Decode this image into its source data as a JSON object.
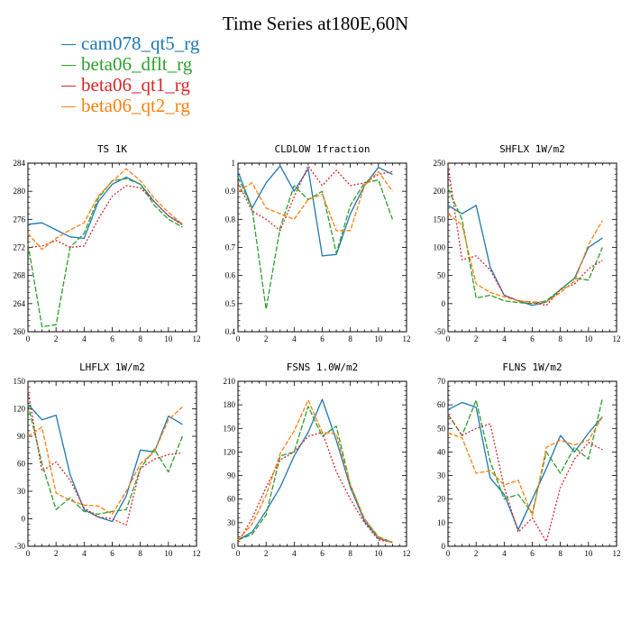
{
  "title": "Time Series at180E,60N",
  "legend": [
    {
      "name": "cam078_qt5_rg",
      "color": "#1f77b4"
    },
    {
      "name": "beta06_dflt_rg",
      "color": "#2ca02c"
    },
    {
      "name": "beta06_qt1_rg",
      "color": "#d62728"
    },
    {
      "name": "beta06_qt2_rg",
      "color": "#ff7f0e"
    }
  ],
  "chart_data": [
    {
      "type": "line",
      "title": "TS   1K",
      "x": [
        0,
        1,
        2,
        3,
        4,
        5,
        6,
        7,
        8,
        9,
        10,
        11
      ],
      "xlim": [
        0,
        12
      ],
      "xticks": [
        0,
        2,
        4,
        6,
        8,
        10,
        12
      ],
      "ylim": [
        260,
        284
      ],
      "yticks": [
        260,
        264,
        268,
        272,
        276,
        280,
        284
      ],
      "series": [
        {
          "name": "cam078_qt5_rg",
          "values": [
            275.3,
            275.5,
            274.5,
            273.5,
            273.3,
            278.5,
            281.0,
            282.0,
            281.0,
            278.5,
            276.5,
            275.3
          ]
        },
        {
          "name": "beta06_dflt_rg",
          "values": [
            272.5,
            260.7,
            261.0,
            272.0,
            274.0,
            279.0,
            281.5,
            281.8,
            281.0,
            278.0,
            276.0,
            274.9
          ]
        },
        {
          "name": "beta06_qt1_rg",
          "values": [
            272.0,
            272.2,
            273.0,
            272.0,
            272.2,
            276.0,
            279.3,
            280.8,
            280.5,
            278.5,
            276.5,
            275.2
          ]
        },
        {
          "name": "beta06_qt2_rg",
          "values": [
            274.0,
            271.7,
            273.3,
            274.5,
            275.5,
            279.3,
            281.4,
            283.2,
            281.5,
            279.0,
            277.0,
            275.3
          ]
        }
      ]
    },
    {
      "type": "line",
      "title": "CLDLOW   1fraction",
      "x": [
        0,
        1,
        2,
        3,
        4,
        5,
        6,
        7,
        8,
        9,
        10,
        11
      ],
      "xlim": [
        0,
        12
      ],
      "xticks": [
        0,
        2,
        4,
        6,
        8,
        10,
        12
      ],
      "ylim": [
        0.4,
        1.0
      ],
      "yticks": [
        0.4,
        0.5,
        0.6,
        0.7,
        0.8,
        0.9,
        1.0
      ],
      "series": [
        {
          "name": "cam078_qt5_rg",
          "values": [
            0.97,
            0.84,
            0.93,
            0.99,
            0.9,
            0.98,
            0.67,
            0.675,
            0.82,
            0.92,
            0.985,
            0.96
          ]
        },
        {
          "name": "beta06_dflt_rg",
          "values": [
            0.95,
            0.84,
            0.48,
            0.77,
            0.92,
            0.87,
            0.9,
            0.68,
            0.85,
            0.93,
            0.94,
            0.8
          ]
        },
        {
          "name": "beta06_qt1_rg",
          "values": [
            0.93,
            0.83,
            0.8,
            0.76,
            0.88,
            0.99,
            0.92,
            0.975,
            0.92,
            0.93,
            0.96,
            0.97
          ]
        },
        {
          "name": "beta06_qt2_rg",
          "values": [
            0.9,
            0.93,
            0.84,
            0.82,
            0.8,
            0.87,
            0.89,
            0.76,
            0.76,
            0.92,
            0.97,
            0.9
          ]
        }
      ]
    },
    {
      "type": "line",
      "title": "SHFLX   1W/m2",
      "x": [
        0,
        1,
        2,
        3,
        4,
        5,
        6,
        7,
        8,
        9,
        10,
        11
      ],
      "xlim": [
        0,
        12
      ],
      "xticks": [
        0,
        2,
        4,
        6,
        8,
        10,
        12
      ],
      "ylim": [
        -50,
        250
      ],
      "yticks": [
        -50,
        0,
        50,
        100,
        150,
        200,
        250
      ],
      "series": [
        {
          "name": "cam078_qt5_rg",
          "values": [
            175,
            160,
            175,
            65,
            15,
            5,
            -3,
            3,
            25,
            45,
            100,
            117
          ]
        },
        {
          "name": "beta06_dflt_rg",
          "values": [
            205,
            150,
            10,
            15,
            5,
            2,
            0,
            5,
            25,
            45,
            42,
            100
          ]
        },
        {
          "name": "beta06_qt1_rg",
          "values": [
            245,
            78,
            85,
            60,
            15,
            5,
            2,
            -3,
            25,
            35,
            62,
            77
          ]
        },
        {
          "name": "beta06_qt2_rg",
          "values": [
            160,
            140,
            35,
            20,
            12,
            5,
            3,
            3,
            20,
            40,
            105,
            148
          ]
        }
      ]
    },
    {
      "type": "line",
      "title": "LHFLX   1W/m2",
      "x": [
        0,
        1,
        2,
        3,
        4,
        5,
        6,
        7,
        8,
        9,
        10,
        11
      ],
      "xlim": [
        0,
        12
      ],
      "xticks": [
        0,
        2,
        4,
        6,
        8,
        10,
        12
      ],
      "ylim": [
        -30,
        150
      ],
      "yticks": [
        -30,
        0,
        30,
        60,
        90,
        120,
        150
      ],
      "series": [
        {
          "name": "cam078_qt5_rg",
          "values": [
            125,
            108,
            113,
            48,
            10,
            2,
            -3,
            25,
            75,
            73,
            112,
            103
          ]
        },
        {
          "name": "beta06_dflt_rg",
          "values": [
            125,
            60,
            10,
            23,
            8,
            5,
            8,
            10,
            55,
            76,
            51,
            90
          ]
        },
        {
          "name": "beta06_qt1_rg",
          "values": [
            140,
            52,
            62,
            42,
            12,
            2,
            0,
            -7,
            55,
            65,
            70,
            72
          ]
        },
        {
          "name": "beta06_qt2_rg",
          "values": [
            90,
            100,
            28,
            20,
            15,
            14,
            5,
            30,
            60,
            73,
            108,
            122
          ]
        }
      ]
    },
    {
      "type": "line",
      "title": "FSNS   1.0W/m2",
      "x": [
        0,
        1,
        2,
        3,
        4,
        5,
        6,
        7,
        8,
        9,
        10,
        11
      ],
      "xlim": [
        0,
        12
      ],
      "xticks": [
        0,
        2,
        4,
        6,
        8,
        10,
        12
      ],
      "ylim": [
        0,
        210
      ],
      "yticks": [
        0,
        30,
        60,
        90,
        120,
        150,
        180,
        210
      ],
      "series": [
        {
          "name": "cam078_qt5_rg",
          "values": [
            8,
            18,
            45,
            75,
            115,
            145,
            187,
            135,
            75,
            32,
            10,
            5
          ]
        },
        {
          "name": "beta06_dflt_rg",
          "values": [
            8,
            15,
            40,
            115,
            120,
            178,
            140,
            153,
            78,
            35,
            12,
            5
          ]
        },
        {
          "name": "beta06_qt1_rg",
          "values": [
            5,
            35,
            75,
            110,
            120,
            140,
            145,
            95,
            60,
            30,
            8,
            5
          ]
        },
        {
          "name": "beta06_qt2_rg",
          "values": [
            8,
            28,
            65,
            118,
            147,
            186,
            145,
            143,
            78,
            35,
            11,
            5
          ]
        }
      ]
    },
    {
      "type": "line",
      "title": "FLNS   1W/m2",
      "x": [
        0,
        1,
        2,
        3,
        4,
        5,
        6,
        7,
        8,
        9,
        10,
        11
      ],
      "xlim": [
        0,
        12
      ],
      "xticks": [
        0,
        2,
        4,
        6,
        8,
        10,
        12
      ],
      "ylim": [
        0,
        70
      ],
      "yticks": [
        0,
        10,
        20,
        30,
        40,
        50,
        60,
        70
      ],
      "series": [
        {
          "name": "cam078_qt5_rg",
          "values": [
            58,
            61,
            59,
            29,
            22,
            7,
            20,
            33,
            47,
            40,
            48,
            55
          ]
        },
        {
          "name": "beta06_dflt_rg",
          "values": [
            56,
            47,
            62,
            36,
            20,
            22,
            14,
            40,
            31,
            42,
            37,
            63
          ]
        },
        {
          "name": "beta06_qt1_rg",
          "values": [
            56,
            47,
            50,
            52,
            25,
            6,
            12,
            2,
            25,
            37,
            44,
            41
          ]
        },
        {
          "name": "beta06_qt2_rg",
          "values": [
            48,
            46,
            31,
            32,
            26,
            28,
            13,
            42,
            45,
            43,
            45,
            55
          ]
        }
      ]
    }
  ]
}
